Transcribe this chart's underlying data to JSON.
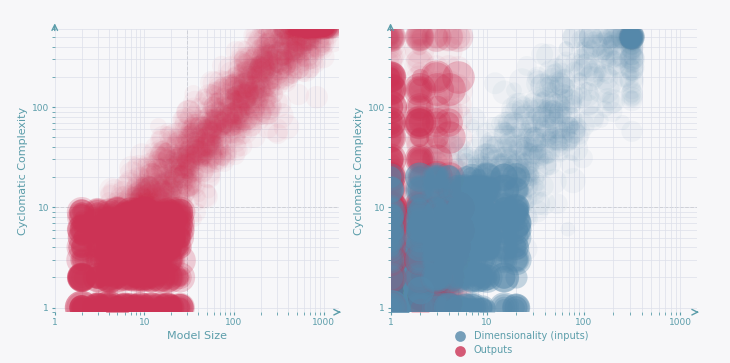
{
  "left_xlabel": "Model Size",
  "ylabel": "Cyclomatic Complexity",
  "xlim": [
    1,
    1500
  ],
  "ylim": [
    0.9,
    600
  ],
  "dashed_x_left": 30,
  "dashed_y": 10,
  "bg_color": "#f7f7f9",
  "grid_color": "#dde0ea",
  "axis_color": "#5b9daa",
  "dot_color_red": "#cc3355",
  "dot_color_blue": "#5588aa",
  "legend_blue_label": "Dimensionality (inputs)",
  "legend_red_label": "Outputs",
  "seed": 12345
}
